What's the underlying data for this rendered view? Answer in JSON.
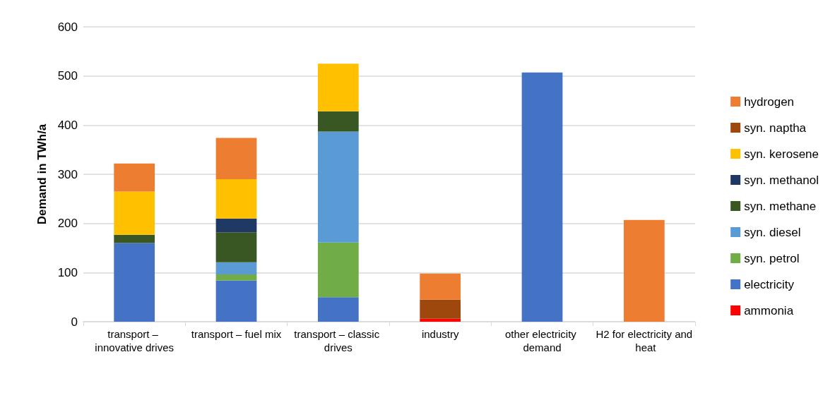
{
  "chart_data": {
    "type": "bar",
    "stacked": true,
    "ylabel": "Demand in TWh/a",
    "categories": [
      "transport – innovative drives",
      "transport – fuel mix",
      "transport – classic drives",
      "industry",
      "other electricity demand",
      "H2 for electricity and heat"
    ],
    "series": [
      {
        "name": "ammonia",
        "color": "#ff0000",
        "values": [
          null,
          null,
          null,
          6,
          null,
          null
        ]
      },
      {
        "name": "electricity",
        "color": "#4472c4",
        "values": [
          160,
          84,
          50,
          null,
          507,
          null
        ]
      },
      {
        "name": "syn. petrol",
        "color": "#70ad47",
        "values": [
          null,
          12,
          111,
          null,
          null,
          null
        ]
      },
      {
        "name": "syn. diesel",
        "color": "#5b9bd5",
        "values": [
          null,
          25,
          226,
          null,
          null,
          null
        ]
      },
      {
        "name": "syn. methane",
        "color": "#385723",
        "values": [
          17,
          61,
          41,
          null,
          null,
          null
        ]
      },
      {
        "name": "syn. methanol",
        "color": "#203864",
        "values": [
          null,
          28,
          null,
          null,
          null,
          null
        ]
      },
      {
        "name": "syn. kerosene",
        "color": "#ffc000",
        "values": [
          88,
          80,
          97,
          null,
          null,
          null
        ]
      },
      {
        "name": "syn. naptha",
        "color": "#9e480e",
        "values": [
          null,
          null,
          null,
          39,
          null,
          null
        ]
      },
      {
        "name": "hydrogen",
        "color": "#ed7d31",
        "values": [
          57,
          84,
          null,
          53,
          null,
          207
        ]
      }
    ],
    "ylim": [
      0,
      600
    ],
    "yticks": [
      0,
      100,
      200,
      300,
      400,
      500,
      600
    ],
    "grid": "y",
    "legend": "right"
  }
}
